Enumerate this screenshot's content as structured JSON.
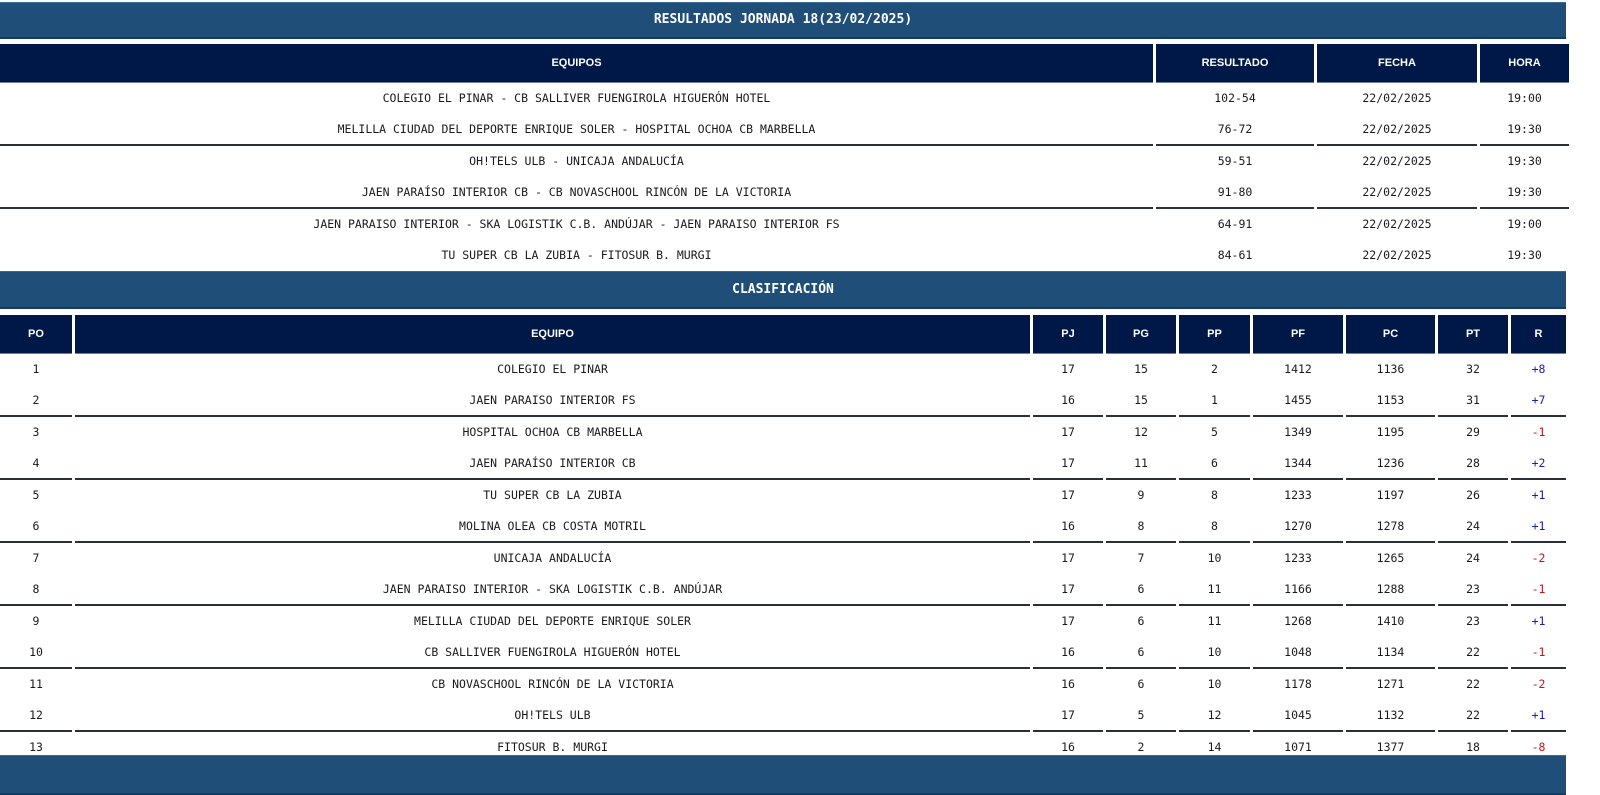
{
  "results_section": {
    "title": "RESULTADOS JORNADA 18(23/02/2025)",
    "columns": [
      "EQUIPOS",
      "RESULTADO",
      "FECHA",
      "HORA"
    ],
    "rows": [
      {
        "teams": "COLEGIO EL PINAR - CB SALLIVER FUENGIROLA HIGUERÓN HOTEL",
        "score": "102-54",
        "date": "22/02/2025",
        "time": "19:00"
      },
      {
        "teams": "MELILLA CIUDAD DEL DEPORTE ENRIQUE SOLER - HOSPITAL OCHOA CB MARBELLA",
        "score": "76-72",
        "date": "22/02/2025",
        "time": "19:30"
      },
      {
        "teams": "OH!TELS ULB - UNICAJA ANDALUCÍA",
        "score": "59-51",
        "date": "22/02/2025",
        "time": "19:30"
      },
      {
        "teams": "JAEN PARAÍSO INTERIOR CB - CB NOVASCHOOL RINCÓN DE LA VICTORIA",
        "score": "91-80",
        "date": "22/02/2025",
        "time": "19:30"
      },
      {
        "teams": "JAEN PARAISO INTERIOR - SKA LOGISTIK C.B. ANDÚJAR - JAEN PARAISO INTERIOR FS",
        "score": "64-91",
        "date": "22/02/2025",
        "time": "19:00"
      },
      {
        "teams": "TU SUPER CB LA ZUBIA - FITOSUR B. MURGI",
        "score": "84-61",
        "date": "22/02/2025",
        "time": "19:30"
      }
    ]
  },
  "standings_section": {
    "title": "CLASIFICACIÓN",
    "columns": [
      "PO",
      "EQUIPO",
      "PJ",
      "PG",
      "PP",
      "PF",
      "PC",
      "PT",
      "R"
    ],
    "rows": [
      {
        "po": "1",
        "team": "COLEGIO EL PINAR",
        "pj": "17",
        "pg": "15",
        "pp": "2",
        "pf": "1412",
        "pc": "1136",
        "pt": "32",
        "r": "+8"
      },
      {
        "po": "2",
        "team": "JAEN PARAISO INTERIOR FS",
        "pj": "16",
        "pg": "15",
        "pp": "1",
        "pf": "1455",
        "pc": "1153",
        "pt": "31",
        "r": "+7"
      },
      {
        "po": "3",
        "team": "HOSPITAL OCHOA CB MARBELLA",
        "pj": "17",
        "pg": "12",
        "pp": "5",
        "pf": "1349",
        "pc": "1195",
        "pt": "29",
        "r": "-1"
      },
      {
        "po": "4",
        "team": "JAEN PARAÍSO INTERIOR CB",
        "pj": "17",
        "pg": "11",
        "pp": "6",
        "pf": "1344",
        "pc": "1236",
        "pt": "28",
        "r": "+2"
      },
      {
        "po": "5",
        "team": "TU SUPER CB LA ZUBIA",
        "pj": "17",
        "pg": "9",
        "pp": "8",
        "pf": "1233",
        "pc": "1197",
        "pt": "26",
        "r": "+1"
      },
      {
        "po": "6",
        "team": "MOLINA OLEA CB COSTA MOTRIL",
        "pj": "16",
        "pg": "8",
        "pp": "8",
        "pf": "1270",
        "pc": "1278",
        "pt": "24",
        "r": "+1"
      },
      {
        "po": "7",
        "team": "UNICAJA ANDALUCÍA",
        "pj": "17",
        "pg": "7",
        "pp": "10",
        "pf": "1233",
        "pc": "1265",
        "pt": "24",
        "r": "-2"
      },
      {
        "po": "8",
        "team": "JAEN PARAISO INTERIOR - SKA LOGISTIK C.B. ANDÚJAR",
        "pj": "17",
        "pg": "6",
        "pp": "11",
        "pf": "1166",
        "pc": "1288",
        "pt": "23",
        "r": "-1"
      },
      {
        "po": "9",
        "team": "MELILLA CIUDAD DEL DEPORTE ENRIQUE SOLER",
        "pj": "17",
        "pg": "6",
        "pp": "11",
        "pf": "1268",
        "pc": "1410",
        "pt": "23",
        "r": "+1"
      },
      {
        "po": "10",
        "team": "CB SALLIVER FUENGIROLA HIGUERÓN HOTEL",
        "pj": "16",
        "pg": "6",
        "pp": "10",
        "pf": "1048",
        "pc": "1134",
        "pt": "22",
        "r": "-1"
      },
      {
        "po": "11",
        "team": "CB NOVASCHOOL RINCÓN DE LA VICTORIA",
        "pj": "16",
        "pg": "6",
        "pp": "10",
        "pf": "1178",
        "pc": "1271",
        "pt": "22",
        "r": "-2"
      },
      {
        "po": "12",
        "team": "OH!TELS ULB",
        "pj": "17",
        "pg": "5",
        "pp": "12",
        "pf": "1045",
        "pc": "1132",
        "pt": "22",
        "r": "+1"
      },
      {
        "po": "13",
        "team": "FITOSUR B. MURGI",
        "pj": "16",
        "pg": "2",
        "pp": "14",
        "pf": "1071",
        "pc": "1377",
        "pt": "18",
        "r": "-8"
      }
    ]
  },
  "colors": {
    "section_bar": "#1f4e79",
    "table_header": "#001848",
    "positive_change": "#1c1ca8",
    "negative_change": "#c0161b"
  }
}
